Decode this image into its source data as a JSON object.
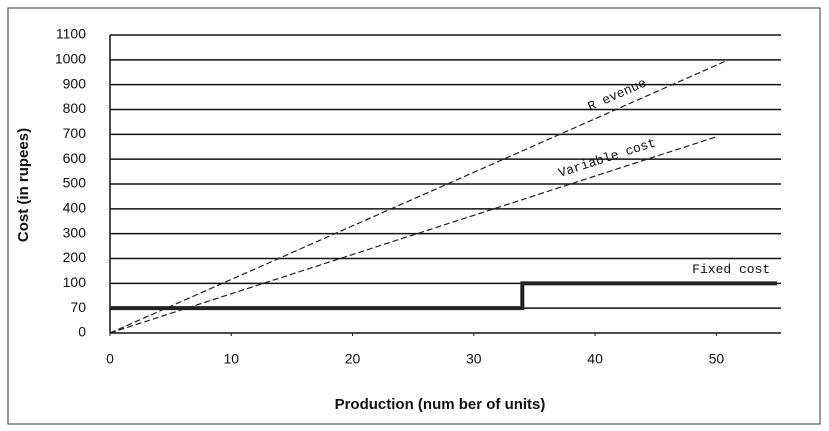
{
  "chart_data": {
    "type": "line",
    "xlabel": "Production (num ber of units)",
    "ylabel": "Cost (in rupees)",
    "xlim": [
      0,
      55
    ],
    "xticks": [
      0,
      10,
      20,
      30,
      40,
      50
    ],
    "ylim": [
      0,
      1100
    ],
    "yticks": [
      0,
      70,
      100,
      200,
      300,
      400,
      500,
      600,
      700,
      800,
      900,
      1000,
      1100
    ],
    "grid": true,
    "series": [
      {
        "name": "R evenue",
        "color": "#222222",
        "dashed": true,
        "x": [
          0,
          51
        ],
        "values": [
          0,
          1000
        ]
      },
      {
        "name": "Variable cost",
        "color": "#222222",
        "dashed": true,
        "x": [
          0,
          50
        ],
        "values": [
          0,
          690
        ]
      },
      {
        "name": "Fixed cost",
        "color": "#222222",
        "dashed": false,
        "x": [
          0,
          34,
          34,
          55
        ],
        "values": [
          70,
          70,
          100,
          100
        ]
      }
    ]
  }
}
